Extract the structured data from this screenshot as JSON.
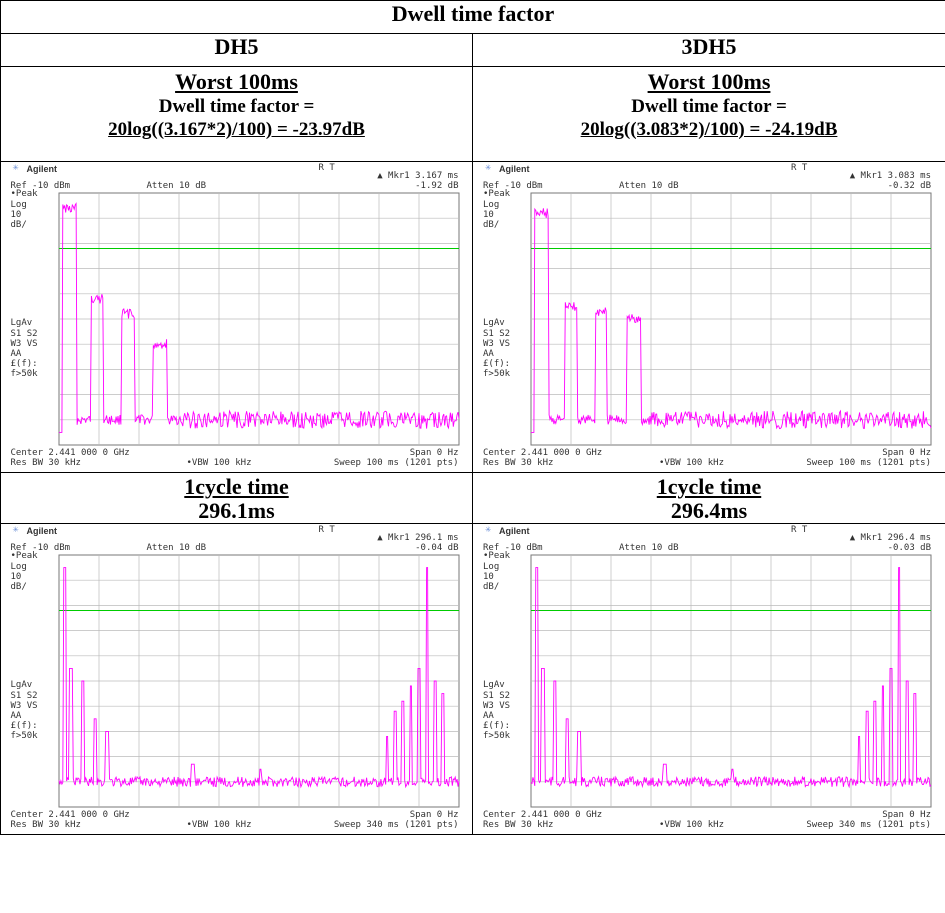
{
  "title": "Dwell time factor",
  "columns": [
    {
      "header": "DH5",
      "worst": {
        "heading": "Worst 100ms",
        "label": "Dwell time factor =",
        "formula": "20log((3.167*2)/100) = -23.97dB"
      },
      "cycle": {
        "heading": "1cycle time",
        "value": "296.1ms"
      }
    },
    {
      "header": "3DH5",
      "worst": {
        "heading": "Worst 100ms",
        "label": "Dwell time factor =",
        "formula": "20log((3.083*2)/100) = -24.19dB"
      },
      "cycle": {
        "heading": "1cycle time",
        "value": "296.4ms"
      }
    }
  ],
  "screens": [
    {
      "brand": "Agilent",
      "rt": "R  T",
      "marker_label": "▲ Mkr1",
      "marker_time": "3.167 ms",
      "marker_db": "-1.92 dB",
      "ref": "Ref -10 dBm",
      "atten": "Atten 10 dB",
      "left_labels": [
        "•Peak",
        "Log",
        "10",
        "dB/",
        "LgAv",
        "S1  S2",
        "W3  VS",
        "AA",
        "£(f):",
        "f>50k"
      ],
      "center": "Center 2.441 000 0 GHz",
      "span": "Span 0 Hz",
      "res_bw": "Res BW 30 kHz",
      "vbw": "•VBW 100 kHz",
      "sweep": "Sweep 100 ms (1201 pts)",
      "trace_color": "#ff00ff",
      "display_line_color": "#00cc00"
    },
    {
      "brand": "Agilent",
      "rt": "R  T",
      "marker_label": "▲ Mkr1",
      "marker_time": "3.083 ms",
      "marker_db": "-0.32 dB",
      "ref": "Ref -10 dBm",
      "atten": "Atten 10 dB",
      "left_labels": [
        "•Peak",
        "Log",
        "10",
        "dB/",
        "LgAv",
        "S1  S2",
        "W3  VS",
        "AA",
        "£(f):",
        "f>50k"
      ],
      "center": "Center 2.441 000 0 GHz",
      "span": "Span 0 Hz",
      "res_bw": "Res BW 30 kHz",
      "vbw": "•VBW 100 kHz",
      "sweep": "Sweep 100 ms (1201 pts)",
      "trace_color": "#ff00ff",
      "display_line_color": "#00cc00"
    },
    {
      "brand": "Agilent",
      "rt": "R  T",
      "marker_label": "▲ Mkr1",
      "marker_time": "296.1 ms",
      "marker_db": "-0.04 dB",
      "ref": "Ref -10 dBm",
      "atten": "Atten 10 dB",
      "left_labels": [
        "•Peak",
        "Log",
        "10",
        "dB/",
        "LgAv",
        "S1  S2",
        "W3  VS",
        "AA",
        "£(f):",
        "f>50k"
      ],
      "center": "Center 2.441 000 0 GHz",
      "span": "Span 0 Hz",
      "res_bw": "Res BW 30 kHz",
      "vbw": "•VBW 100 kHz",
      "sweep": "Sweep 340 ms (1201 pts)",
      "trace_color": "#ff00ff",
      "display_line_color": "#00cc00"
    },
    {
      "brand": "Agilent",
      "rt": "R  T",
      "marker_label": "▲ Mkr1",
      "marker_time": "296.4 ms",
      "marker_db": "-0.03 dB",
      "ref": "Ref -10 dBm",
      "atten": "Atten 10 dB",
      "left_labels": [
        "•Peak",
        "Log",
        "10",
        "dB/",
        "LgAv",
        "S1  S2",
        "W3  VS",
        "AA",
        "£(f):",
        "f>50k"
      ],
      "center": "Center 2.441 000 0 GHz",
      "span": "Span 0 Hz",
      "res_bw": "Res BW 30 kHz",
      "vbw": "•VBW 100 kHz",
      "sweep": "Sweep 340 ms (1201 pts)",
      "trace_color": "#ff00ff",
      "display_line_color": "#00cc00"
    }
  ]
}
